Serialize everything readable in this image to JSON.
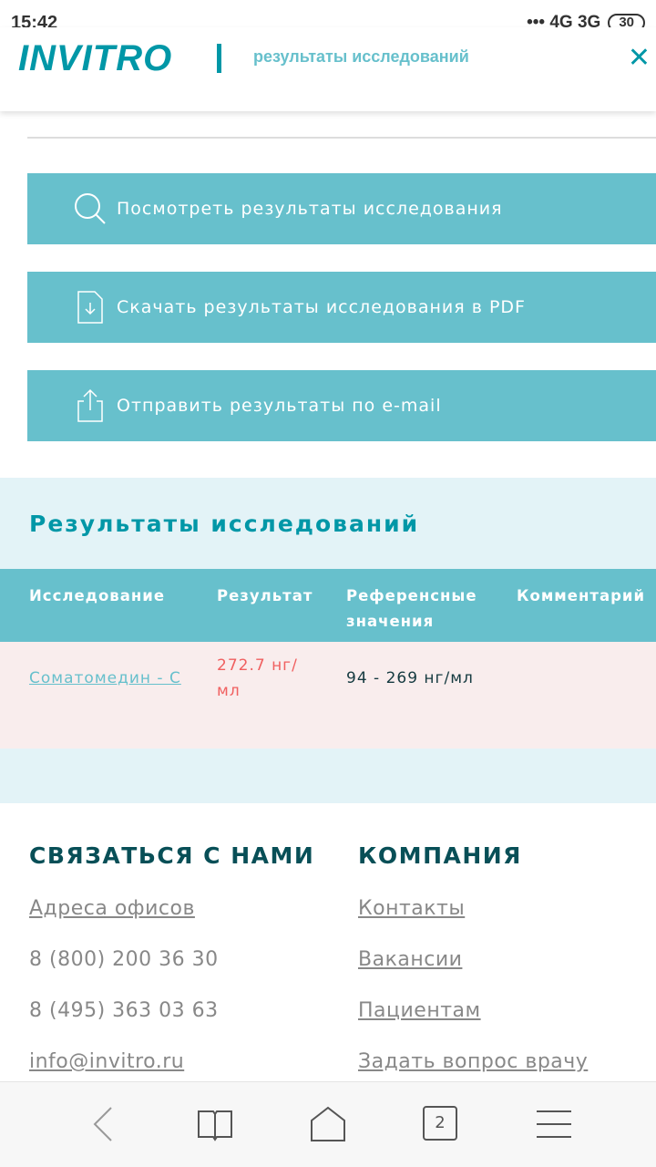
{
  "status": {
    "time": "15:42",
    "signal": "••• 4G 3G",
    "battery": "30"
  },
  "header": {
    "logo": "INVITRO",
    "title": "результаты исследований"
  },
  "actions": [
    {
      "label": "Посмотреть результаты исследования",
      "icon": "search-icon"
    },
    {
      "label": "Скачать результаты исследования в PDF",
      "icon": "pdf-download-icon"
    },
    {
      "label": "Отправить результаты по e-mail",
      "icon": "share-icon"
    }
  ],
  "results": {
    "title": "Результаты исследований",
    "columns": [
      "Исследование",
      "Результат",
      "Референсные значения",
      "Комментарий"
    ],
    "rows": [
      {
        "test": "Соматомедин - С",
        "result": "272.7 нг/мл",
        "reference": "94 - 269 нг/мл",
        "comment": ""
      }
    ],
    "colors": {
      "header": "#67c0cc",
      "abnormal_row": "#f9eded",
      "abnormal_value": "#f06060"
    }
  },
  "footer": {
    "contact": {
      "title": "СВЯЗАТЬСЯ С НАМИ",
      "items": [
        "Адреса офисов",
        "8 (800) 200 36 30",
        "8 (495) 363 03 63",
        "info@invitro.ru"
      ]
    },
    "company": {
      "title": "КОМПАНИЯ",
      "items": [
        "Контакты",
        "Вакансии",
        "Пациентам",
        "Задать вопрос врачу"
      ]
    }
  },
  "browser_nav": {
    "tabs_count": "2"
  }
}
